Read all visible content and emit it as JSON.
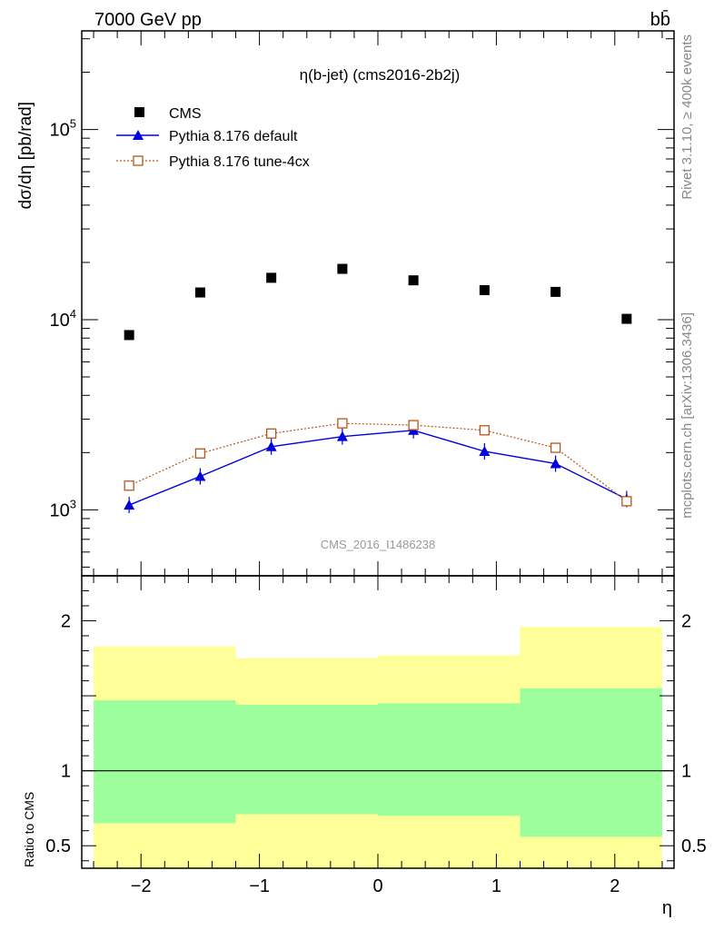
{
  "header": {
    "energy_label": "7000 GeV pp",
    "process_label": "bb̄"
  },
  "side_labels": {
    "rivet": "Rivet 3.1.10, ≥ 400k events",
    "mcplots": "mcplots.cern.ch [arXiv:1306.3436]"
  },
  "chart_data": [
    {
      "type": "scatter",
      "panel": "main",
      "title": "η(b-jet) (cms2016-2b2j)",
      "watermark": "CMS_2016_I1486238",
      "ylabel": "dσ/dη [pb/rad]",
      "yscale": "log",
      "ylim": [
        450,
        330000
      ],
      "xlim": [
        -2.5,
        2.5
      ],
      "y_tick_labels": [
        {
          "value": 1000,
          "base": "10",
          "exp": "3"
        },
        {
          "value": 10000,
          "base": "10",
          "exp": "4"
        },
        {
          "value": 100000,
          "base": "10",
          "exp": "5"
        }
      ],
      "legend_placement": "top-left",
      "series": [
        {
          "name": "CMS",
          "marker": "square",
          "color": "#000000",
          "x": [
            -2.1,
            -1.5,
            -0.9,
            -0.3,
            0.3,
            0.9,
            1.5,
            2.1
          ],
          "y": [
            8300,
            13900,
            16600,
            18500,
            16100,
            14300,
            14000,
            10100
          ]
        },
        {
          "name": "Pythia 8.176 default",
          "marker": "triangle",
          "color": "#0000dd",
          "line": "solid",
          "x": [
            -2.1,
            -1.5,
            -0.9,
            -0.3,
            0.3,
            0.9,
            1.5,
            2.1
          ],
          "y": [
            1060,
            1500,
            2150,
            2430,
            2620,
            2030,
            1750,
            1140
          ]
        },
        {
          "name": "Pythia 8.176 tune-4cx",
          "marker": "open-square",
          "color": "#b8561a",
          "line": "dotted",
          "x": [
            -2.1,
            -1.5,
            -0.9,
            -0.3,
            0.3,
            0.9,
            1.5,
            2.1
          ],
          "y": [
            1340,
            1980,
            2520,
            2850,
            2790,
            2620,
            2120,
            1110
          ]
        }
      ]
    },
    {
      "type": "area",
      "panel": "ratio",
      "ylabel": "Ratio to CMS",
      "xlabel": "η",
      "ylim": [
        0.35,
        2.3
      ],
      "xlim": [
        -2.5,
        2.5
      ],
      "x_ticks": [
        -2,
        -1,
        0,
        1,
        2
      ],
      "x_tick_labels": [
        "−2",
        "−1",
        "0",
        "1",
        "2"
      ],
      "y_ticks": [
        0.5,
        1,
        2
      ],
      "y_tick_labels": [
        "0.5",
        "1",
        "2"
      ],
      "bands": [
        {
          "xlo": -2.4,
          "xhi": -1.2,
          "green": [
            0.65,
            1.47
          ],
          "yellow": [
            0.35,
            1.83
          ]
        },
        {
          "xlo": -1.2,
          "xhi": 0.0,
          "green": [
            0.71,
            1.44
          ],
          "yellow": [
            0.35,
            1.75
          ]
        },
        {
          "xlo": 0.0,
          "xhi": 1.2,
          "green": [
            0.7,
            1.45
          ],
          "yellow": [
            0.35,
            1.77
          ]
        },
        {
          "xlo": 1.2,
          "xhi": 2.4,
          "green": [
            0.56,
            1.55
          ],
          "yellow": [
            0.35,
            1.96
          ]
        }
      ],
      "reference_line": 1
    }
  ],
  "colors": {
    "cms": "#000000",
    "pythia_default": "#0000dd",
    "pythia_tune": "#b8561a",
    "band_green": "#9cff9c",
    "band_yellow": "#ffff99"
  }
}
